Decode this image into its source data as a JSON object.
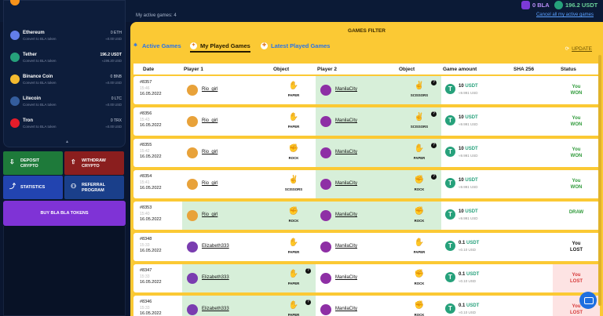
{
  "header": {
    "subtitle": "My active games: 4",
    "wallet_bla": "0 BLA",
    "wallet_usdt": "196.2 USDT",
    "cancel_link": "Cancel all my active games"
  },
  "sidebar": {
    "coins": [
      {
        "name": "Ethereum",
        "sub": "Convert to BLA token",
        "balance": "0 ETH",
        "fiat": "≈0.00 USD",
        "color": "#627eea"
      },
      {
        "name": "Tether",
        "sub": "Convert to BLA token",
        "balance": "196.2 USDT",
        "fiat": "≈196.20 USD",
        "color": "#26a17b"
      },
      {
        "name": "Binance Coin",
        "sub": "Convert to BLA token",
        "balance": "0 BNB",
        "fiat": "≈0.00 USD",
        "color": "#f3ba2f"
      },
      {
        "name": "Litecoin",
        "sub": "Convert to BLA token",
        "balance": "0 LTC",
        "fiat": "≈0.00 USD",
        "color": "#345d9d"
      },
      {
        "name": "Tron",
        "sub": "Convert to BLA token",
        "balance": "0 TRX",
        "fiat": "≈0.00 USD",
        "color": "#e51c2a"
      }
    ],
    "buttons": {
      "deposit": "DEPOSIT\nCRYPTO",
      "withdraw": "WITHDRAW\nCRYPTO",
      "statistics": "STATISTICS",
      "referral": "REFERRAL\nPROGRAM",
      "buy": "BUY BLA BLA TOKENS"
    }
  },
  "main": {
    "filter_title": "GAMES FILTER",
    "tabs": [
      "Active Games",
      "My Played Games",
      "Latest Played Games"
    ],
    "update_label": "UPDATE",
    "columns": [
      "Date",
      "Player 1",
      "Object",
      "Player 2",
      "Object",
      "Game amount",
      "SHA 256",
      "Status"
    ],
    "rows": [
      {
        "id": "#8357",
        "time": "15:46",
        "date": "16.05.2022",
        "p1": "Rio_girl",
        "obj1": "PAPER",
        "p2": "ManilaCity",
        "obj2": "SCISSORS",
        "amount": "10",
        "currency": "USDT",
        "fiat": "≈9.991 USD",
        "status": "You\nWON",
        "result": "won",
        "winner": "p2"
      },
      {
        "id": "#8356",
        "time": "15:43",
        "date": "16.05.2022",
        "p1": "Rio_girl",
        "obj1": "PAPER",
        "p2": "ManilaCity",
        "obj2": "SCISSORS",
        "amount": "10",
        "currency": "USDT",
        "fiat": "≈9.991 USD",
        "status": "You\nWON",
        "result": "won",
        "winner": "p2"
      },
      {
        "id": "#8355",
        "time": "15:42",
        "date": "16.05.2022",
        "p1": "Rio_girl",
        "obj1": "ROCK",
        "p2": "ManilaCity",
        "obj2": "PAPER",
        "amount": "10",
        "currency": "USDT",
        "fiat": "≈9.991 USD",
        "status": "You\nWON",
        "result": "won",
        "winner": "p2"
      },
      {
        "id": "#8354",
        "time": "15:41",
        "date": "16.05.2022",
        "p1": "Rio_girl",
        "obj1": "SCISSORS",
        "p2": "ManilaCity",
        "obj2": "ROCK",
        "amount": "10",
        "currency": "USDT",
        "fiat": "≈9.991 USD",
        "status": "You\nWON",
        "result": "won",
        "winner": "p2"
      },
      {
        "id": "#8353",
        "time": "15:40",
        "date": "16.05.2022",
        "p1": "Rio_girl",
        "obj1": "ROCK",
        "p2": "ManilaCity",
        "obj2": "ROCK",
        "amount": "10",
        "currency": "USDT",
        "fiat": "≈9.991 USD",
        "status": "DRAW",
        "result": "draw",
        "winner": "both"
      },
      {
        "id": "#8348",
        "time": "15:33",
        "date": "16.05.2022",
        "p1": "Elizabeth333",
        "obj1": "PAPER",
        "p2": "ManilaCity",
        "obj2": "PAPER",
        "amount": "0.1",
        "currency": "USDT",
        "fiat": "≈0.10 USD",
        "status": "You\nLOST",
        "result": "lostdark",
        "winner": "none"
      },
      {
        "id": "#8347",
        "time": "15:33",
        "date": "16.05.2022",
        "p1": "Elizabeth333",
        "obj1": "PAPER",
        "p2": "ManilaCity",
        "obj2": "ROCK",
        "amount": "0.1",
        "currency": "USDT",
        "fiat": "≈0.10 USD",
        "status": "You\nLOST",
        "result": "lost",
        "winner": "p1"
      },
      {
        "id": "#8346",
        "time": "15:33",
        "date": "16.05.2022",
        "p1": "Elizabeth333",
        "obj1": "PAPER",
        "p2": "ManilaCity",
        "obj2": "ROCK",
        "amount": "0.1",
        "currency": "USDT",
        "fiat": "≈0.10 USD",
        "status": "You\nLOST",
        "result": "lost",
        "winner": "p1"
      }
    ]
  },
  "colors": {
    "accent": "#fbc934",
    "won": "#2f9a3a",
    "lost": "#d63a3a",
    "usdt": "#26a17b"
  }
}
